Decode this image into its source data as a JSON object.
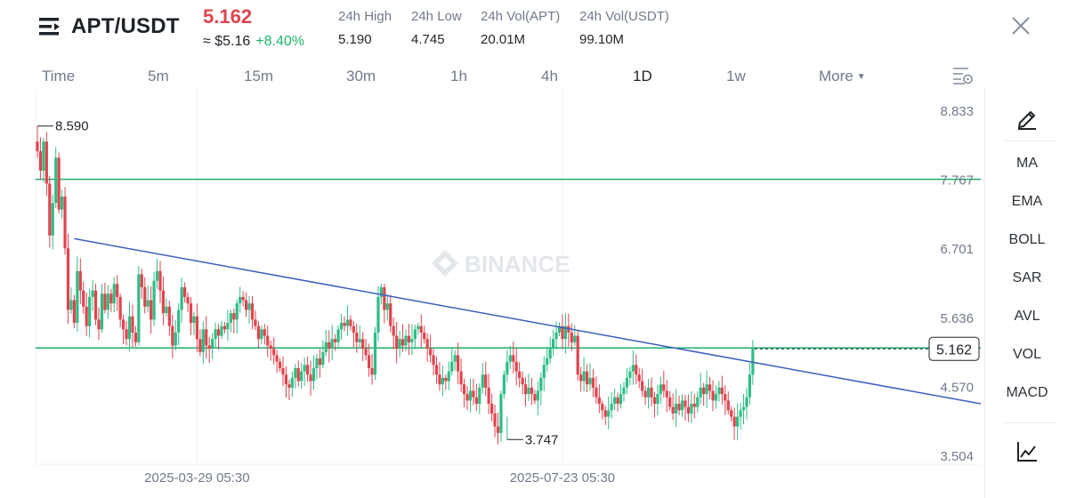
{
  "header": {
    "symbol": "APT/USDT",
    "last_price": "5.162",
    "approx_price": "≈ $5.16",
    "change_pct": "+8.40%",
    "stats": [
      {
        "label": "24h High",
        "value": "5.190"
      },
      {
        "label": "24h Low",
        "value": "4.745"
      },
      {
        "label": "24h Vol(APT)",
        "value": "20.01M"
      },
      {
        "label": "24h Vol(USDT)",
        "value": "99.10M"
      }
    ]
  },
  "tabs": [
    {
      "label": "Time",
      "active": false
    },
    {
      "label": "5m",
      "active": false
    },
    {
      "label": "15m",
      "active": false
    },
    {
      "label": "30m",
      "active": false
    },
    {
      "label": "1h",
      "active": false
    },
    {
      "label": "4h",
      "active": false
    },
    {
      "label": "1D",
      "active": true
    },
    {
      "label": "1w",
      "active": false
    },
    {
      "label": "More",
      "active": false
    }
  ],
  "indicators": [
    "MA",
    "EMA",
    "BOLL",
    "SAR",
    "AVL",
    "VOL",
    "MACD"
  ],
  "colors": {
    "up": "#2ebd85",
    "down": "#e0444e",
    "line": "#1fad6b",
    "trend": "#3b5fc0",
    "grid": "#eef0f2"
  },
  "icons": [
    "menu-icon",
    "close-icon",
    "chart-settings-icon",
    "draw-pen-icon",
    "chart-trend-icon"
  ],
  "chart_data": {
    "type": "candlestick",
    "interval": "1D",
    "watermark": "BINANCE",
    "y_ticks": [
      8.833,
      7.767,
      6.701,
      5.636,
      4.57,
      3.504
    ],
    "y_tick_labels": [
      "8.833",
      "7.767",
      "6.701",
      "5.636",
      "4.570",
      "3.504"
    ],
    "x_tick_labels": [
      "2025-03-29 05:30",
      "2025-07-23 05:30"
    ],
    "x_tick_index": [
      52,
      171
    ],
    "current_price": 5.162,
    "current_price_label": "5.162",
    "annotations": [
      {
        "text": "8.590",
        "value": 8.59,
        "index": 0
      },
      {
        "text": "3.747",
        "value": 3.747,
        "index": 153
      }
    ],
    "horizontal_lines": [
      7.767,
      5.162
    ],
    "trend_line": {
      "from": {
        "index": 12,
        "value": 6.85
      },
      "to": {
        "index": 355,
        "value": 4.3
      }
    },
    "closes": [
      8.2,
      7.9,
      8.35,
      7.7,
      6.9,
      7.4,
      8.1,
      7.3,
      7.5,
      6.7,
      5.75,
      5.9,
      5.55,
      6.35,
      6.05,
      5.8,
      5.5,
      5.95,
      6.05,
      5.6,
      5.45,
      6.0,
      5.75,
      6.0,
      5.85,
      6.15,
      5.95,
      5.6,
      5.45,
      5.3,
      5.65,
      5.4,
      5.25,
      6.3,
      6.1,
      5.8,
      5.9,
      5.6,
      6.2,
      6.35,
      6.05,
      5.7,
      5.8,
      5.5,
      5.2,
      5.4,
      5.75,
      6.1,
      5.95,
      5.85,
      5.55,
      5.65,
      5.3,
      5.1,
      5.45,
      5.2,
      5.15,
      5.3,
      5.45,
      5.35,
      5.5,
      5.45,
      5.55,
      5.7,
      5.6,
      5.85,
      5.95,
      5.9,
      5.75,
      5.85,
      5.6,
      5.5,
      5.3,
      5.45,
      5.35,
      5.2,
      5.15,
      5.05,
      4.95,
      4.85,
      4.75,
      4.6,
      4.55,
      4.7,
      4.85,
      4.65,
      4.8,
      4.9,
      4.75,
      4.65,
      4.85,
      5.0,
      4.9,
      5.1,
      5.25,
      5.15,
      5.3,
      5.25,
      5.45,
      5.55,
      5.5,
      5.6,
      5.5,
      5.4,
      5.25,
      5.3,
      5.15,
      5.05,
      4.85,
      4.75,
      5.4,
      5.95,
      6.1,
      5.75,
      5.85,
      5.5,
      5.35,
      5.15,
      5.3,
      5.2,
      5.35,
      5.25,
      5.3,
      5.45,
      5.5,
      5.4,
      5.3,
      5.15,
      5.05,
      4.9,
      4.75,
      4.6,
      4.7,
      4.65,
      4.8,
      4.95,
      5.05,
      4.8,
      4.6,
      4.45,
      4.35,
      4.5,
      4.4,
      4.3,
      4.55,
      4.75,
      4.55,
      4.3,
      4.15,
      3.95,
      3.85,
      4.45,
      4.75,
      4.95,
      5.05,
      4.95,
      4.8,
      4.7,
      4.6,
      4.45,
      4.55,
      4.45,
      4.35,
      4.5,
      4.7,
      4.9,
      5.0,
      5.15,
      5.3,
      5.4,
      5.5,
      5.3,
      5.5,
      5.4,
      5.25,
      5.35,
      4.75,
      4.65,
      4.8,
      4.6,
      4.7,
      4.55,
      4.4,
      4.3,
      4.2,
      4.1,
      4.2,
      4.3,
      4.4,
      4.3,
      4.45,
      4.55,
      4.7,
      4.8,
      4.9,
      4.75,
      4.65,
      4.5,
      4.4,
      4.55,
      4.4,
      4.3,
      4.45,
      4.6,
      4.5,
      4.4,
      4.25,
      4.15,
      4.3,
      4.2,
      4.35,
      4.25,
      4.15,
      4.3,
      4.25,
      4.4,
      4.55,
      4.45,
      4.6,
      4.5,
      4.35,
      4.45,
      4.55,
      4.45,
      4.35,
      4.2,
      4.1,
      3.95,
      4.1,
      4.2,
      4.25,
      4.4,
      4.75,
      5.16
    ],
    "start_price": 8.35
  }
}
